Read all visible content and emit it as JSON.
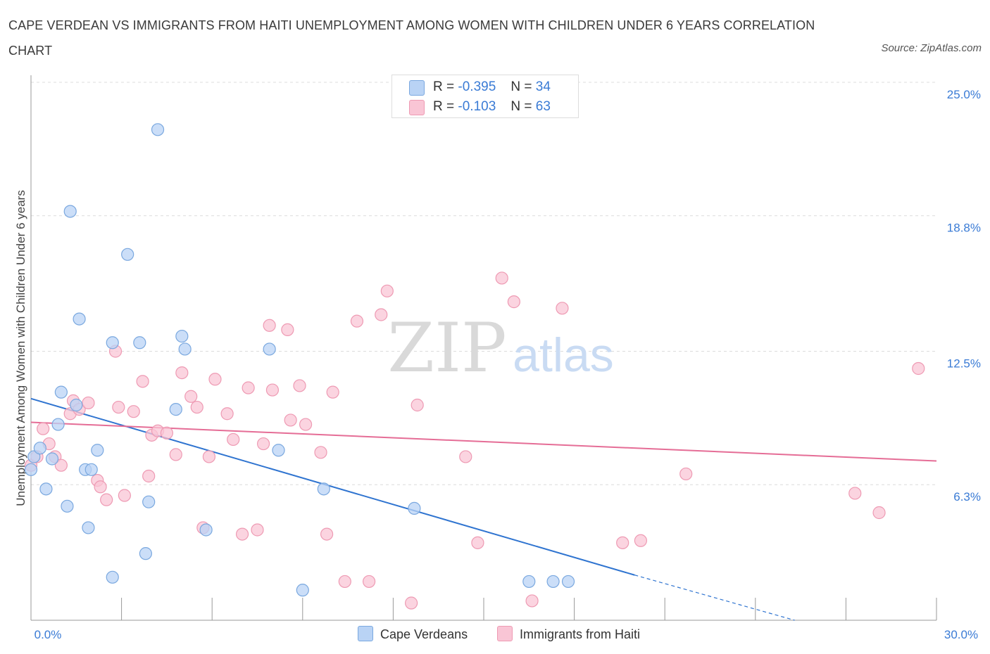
{
  "title": "CAPE VERDEAN VS IMMIGRANTS FROM HAITI UNEMPLOYMENT AMONG WOMEN WITH CHILDREN UNDER 6 YEARS CORRELATION CHART",
  "source": "Source: ZipAtlas.com",
  "watermark": {
    "zip": "ZIP",
    "atlas": "atlas"
  },
  "legend_top": {
    "rows": [
      {
        "r_label": "R =",
        "r_value": "-0.395",
        "n_label": "N =",
        "n_value": "34"
      },
      {
        "r_label": "R =",
        "r_value": "-0.103",
        "n_label": "N =",
        "n_value": "63"
      }
    ]
  },
  "legend_bottom": [
    "Cape Verdeans",
    "Immigrants from Haiti"
  ],
  "colors": {
    "blue_fill": "#b9d3f5",
    "blue_stroke": "#7aa8df",
    "blue_line": "#2f74d0",
    "pink_fill": "#f9c5d5",
    "pink_stroke": "#ee9ab3",
    "pink_line": "#e56d96",
    "tick_text": "#3a7bd5",
    "grid": "#dcdcdc"
  },
  "chart_data": {
    "type": "scatter",
    "title": "CAPE VERDEAN VS IMMIGRANTS FROM HAITI UNEMPLOYMENT AMONG WOMEN WITH CHILDREN UNDER 6 YEARS CORRELATION CHART",
    "xlabel": "",
    "ylabel": "Unemployment Among Women with Children Under 6 years",
    "xlim": [
      0,
      30
    ],
    "ylim": [
      0,
      25
    ],
    "x_tick_labels": [
      "0.0%",
      "30.0%"
    ],
    "y_tick_values": [
      6.3,
      12.5,
      18.8,
      25.0
    ],
    "y_tick_labels": [
      "6.3%",
      "12.5%",
      "18.8%",
      "25.0%"
    ],
    "grid": true,
    "legend_position": "bottom",
    "series": [
      {
        "name": "Cape Verdeans",
        "color": "#b9d3f5",
        "points": [
          [
            0.0,
            7.0
          ],
          [
            0.1,
            7.6
          ],
          [
            0.3,
            8.0
          ],
          [
            0.5,
            6.1
          ],
          [
            0.7,
            7.5
          ],
          [
            0.9,
            9.1
          ],
          [
            1.0,
            10.6
          ],
          [
            1.2,
            5.3
          ],
          [
            1.3,
            19.0
          ],
          [
            1.5,
            10.0
          ],
          [
            1.6,
            14.0
          ],
          [
            1.8,
            7.0
          ],
          [
            1.9,
            4.3
          ],
          [
            2.0,
            7.0
          ],
          [
            2.2,
            7.9
          ],
          [
            2.7,
            12.9
          ],
          [
            2.7,
            2.0
          ],
          [
            3.2,
            17.0
          ],
          [
            3.6,
            12.9
          ],
          [
            3.8,
            3.1
          ],
          [
            3.9,
            5.5
          ],
          [
            4.2,
            22.8
          ],
          [
            4.8,
            9.8
          ],
          [
            5.0,
            13.2
          ],
          [
            5.1,
            12.6
          ],
          [
            5.8,
            4.2
          ],
          [
            7.9,
            12.6
          ],
          [
            8.2,
            7.9
          ],
          [
            9.0,
            1.4
          ],
          [
            9.7,
            6.1
          ],
          [
            12.7,
            5.2
          ],
          [
            16.5,
            1.8
          ],
          [
            17.3,
            1.8
          ],
          [
            17.8,
            1.8
          ]
        ],
        "trend": {
          "x": [
            0,
            20
          ],
          "y": [
            10.3,
            2.1
          ],
          "dashed_to": [
            25.3,
            0
          ]
        }
      },
      {
        "name": "Immigrants from Haiti",
        "color": "#f9c5d5",
        "points": [
          [
            0.0,
            7.2
          ],
          [
            0.2,
            7.6
          ],
          [
            0.4,
            8.9
          ],
          [
            0.6,
            8.2
          ],
          [
            0.8,
            7.6
          ],
          [
            1.0,
            7.2
          ],
          [
            1.3,
            9.6
          ],
          [
            1.4,
            10.2
          ],
          [
            1.6,
            9.8
          ],
          [
            1.9,
            10.1
          ],
          [
            2.2,
            6.5
          ],
          [
            2.3,
            6.2
          ],
          [
            2.5,
            5.6
          ],
          [
            2.8,
            12.5
          ],
          [
            2.9,
            9.9
          ],
          [
            3.1,
            5.8
          ],
          [
            3.4,
            9.7
          ],
          [
            3.7,
            11.1
          ],
          [
            3.9,
            6.7
          ],
          [
            4.0,
            8.6
          ],
          [
            4.2,
            8.8
          ],
          [
            4.5,
            8.7
          ],
          [
            4.8,
            7.7
          ],
          [
            5.0,
            11.5
          ],
          [
            5.3,
            10.4
          ],
          [
            5.5,
            9.9
          ],
          [
            5.7,
            4.3
          ],
          [
            5.9,
            7.6
          ],
          [
            6.1,
            11.2
          ],
          [
            6.5,
            9.6
          ],
          [
            6.7,
            8.4
          ],
          [
            7.0,
            4.0
          ],
          [
            7.2,
            10.8
          ],
          [
            7.5,
            4.2
          ],
          [
            7.7,
            8.2
          ],
          [
            7.9,
            13.7
          ],
          [
            8.0,
            10.7
          ],
          [
            8.5,
            13.5
          ],
          [
            8.6,
            9.3
          ],
          [
            8.9,
            10.9
          ],
          [
            9.1,
            9.1
          ],
          [
            9.6,
            7.8
          ],
          [
            9.8,
            4.0
          ],
          [
            10.0,
            10.6
          ],
          [
            10.4,
            1.8
          ],
          [
            10.8,
            13.9
          ],
          [
            11.2,
            1.8
          ],
          [
            11.6,
            14.2
          ],
          [
            11.8,
            15.3
          ],
          [
            12.6,
            0.8
          ],
          [
            12.8,
            10.0
          ],
          [
            14.4,
            7.6
          ],
          [
            14.8,
            3.6
          ],
          [
            15.6,
            15.9
          ],
          [
            16.0,
            14.8
          ],
          [
            16.6,
            0.9
          ],
          [
            17.6,
            14.5
          ],
          [
            19.6,
            3.6
          ],
          [
            20.2,
            3.7
          ],
          [
            21.7,
            6.8
          ],
          [
            27.3,
            5.9
          ],
          [
            28.1,
            5.0
          ],
          [
            29.4,
            11.7
          ]
        ],
        "trend": {
          "x": [
            0,
            30
          ],
          "y": [
            9.2,
            7.4
          ]
        }
      }
    ]
  }
}
